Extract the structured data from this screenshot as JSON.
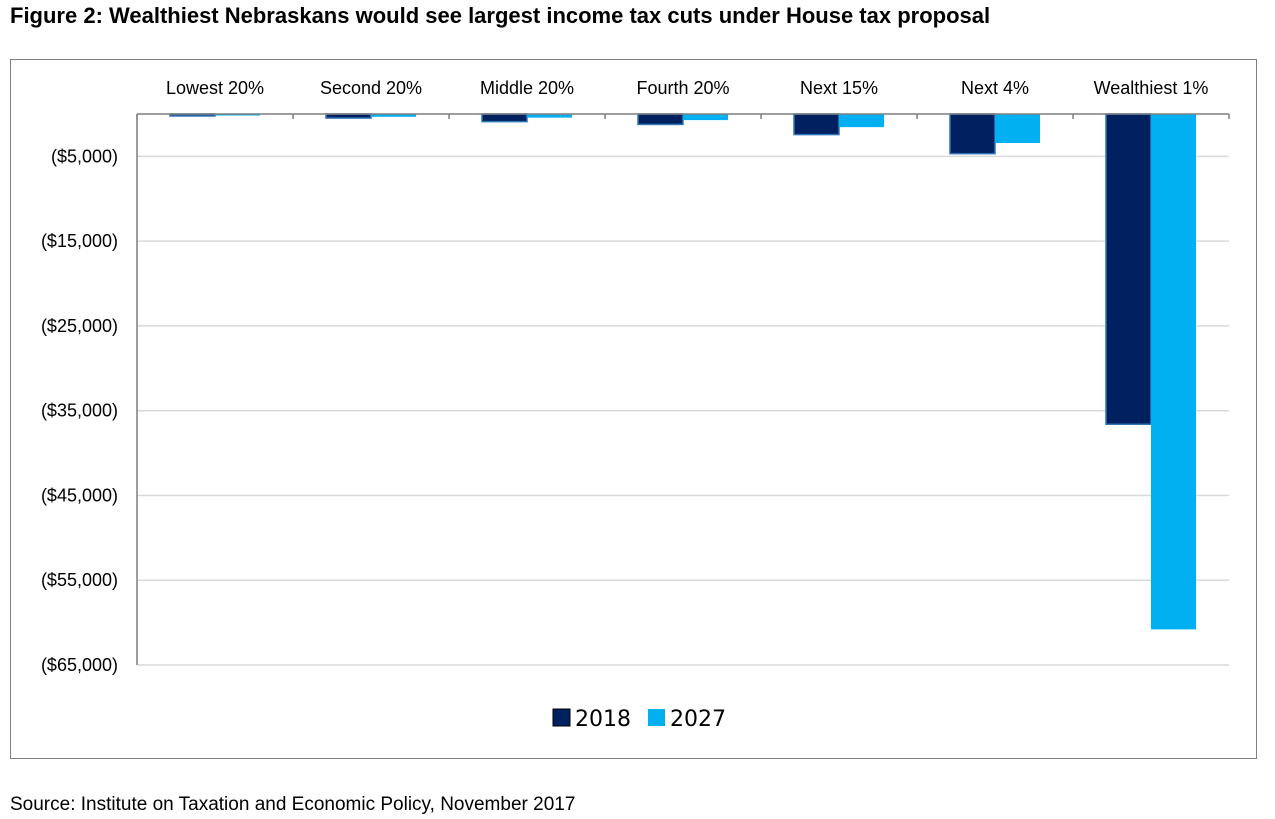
{
  "figure_title": "Figure 2: Wealthiest Nebraskans would see largest income tax cuts under House tax proposal",
  "source_note": "Source: Institute on Taxation and Economic Policy, November 2017",
  "chart_data": {
    "type": "bar",
    "categories": [
      "Lowest 20%",
      "Second 20%",
      "Middle 20%",
      "Fourth 20%",
      "Next 15%",
      "Next 4%",
      "Wealthiest 1%"
    ],
    "series": [
      {
        "name": "2018",
        "color": "#002060",
        "values": [
          -230,
          -480,
          -900,
          -1230,
          -2430,
          -4680,
          -36600
        ]
      },
      {
        "name": "2027",
        "color": "#00b0f0",
        "values": [
          -180,
          -330,
          -430,
          -720,
          -1550,
          -3420,
          -60800
        ]
      }
    ],
    "y_tick_labels": [
      "($5,000)",
      "($15,000)",
      "($25,000)",
      "($35,000)",
      "($45,000)",
      "($55,000)",
      "($65,000)"
    ],
    "y_ticks": [
      -5000,
      -15000,
      -25000,
      -35000,
      -45000,
      -55000,
      -65000
    ],
    "ylim": [
      -65000,
      0
    ],
    "category_labels_position": "top",
    "grid": true,
    "legend_position": "bottom"
  }
}
